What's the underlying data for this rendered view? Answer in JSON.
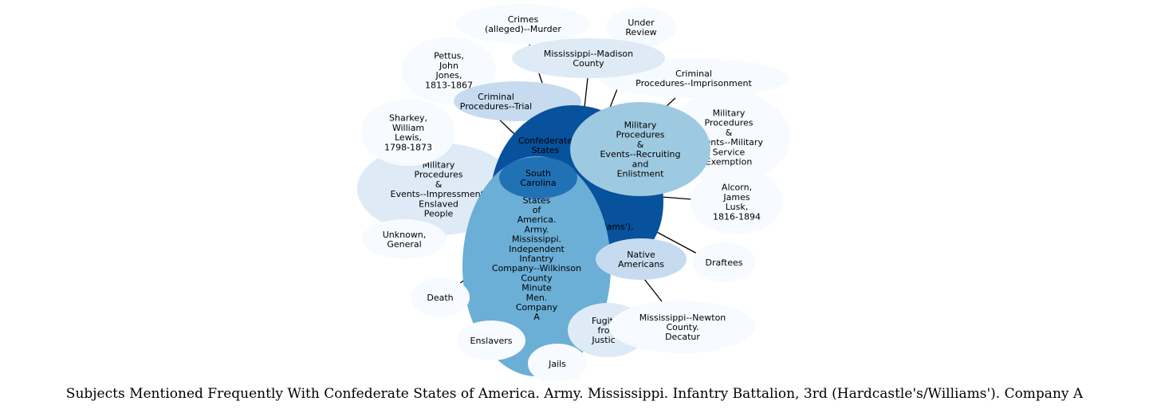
{
  "caption": "Subjects Mentioned Frequently With Confederate States of America. Army. Mississippi. Infantry Battalion, 3rd (Hardcastle's/Williams'). Company A",
  "colors": {
    "darkest": "#08519c",
    "dark": "#2171b5",
    "mid": "#6baed6",
    "light": "#9ecae1",
    "pale": "#c6dbef",
    "paler": "#deebf7",
    "palest": "#f7fbff",
    "edge": "#000000"
  },
  "nodes": [
    {
      "id": "crimes-murder",
      "label": [
        "Crimes",
        "(alleged)--Murder"
      ]
    },
    {
      "id": "under-review",
      "label": [
        "Under",
        "Review"
      ]
    },
    {
      "id": "madison-county",
      "label": [
        "Mississippi--Madison",
        "County"
      ]
    },
    {
      "id": "pettus",
      "label": [
        "Pettus,",
        "John",
        "Jones,",
        "1813-1867"
      ]
    },
    {
      "id": "criminal-imprisonment",
      "label": [
        "Criminal",
        "Procedures--Imprisonment"
      ]
    },
    {
      "id": "criminal-trial",
      "label": [
        "Criminal",
        "Procedures--Trial"
      ]
    },
    {
      "id": "confederate-states",
      "label": [
        "Confederate",
        "States"
      ],
      "label_tail": "'s/Williams')."
    },
    {
      "id": "military-exemption",
      "label": [
        "Military",
        "Procedures",
        "&",
        "Events--Military",
        "Service",
        "Exemption"
      ]
    },
    {
      "id": "military-recruiting",
      "label": [
        "Military",
        "Procedures",
        "&",
        "Events--Recruiting",
        "and",
        "Enlistment"
      ]
    },
    {
      "id": "sharkey",
      "label": [
        "Sharkey,",
        "William",
        "Lewis,",
        "1798-1873"
      ]
    },
    {
      "id": "military-impressment",
      "label": [
        "Military",
        "Procedures",
        "&",
        "Events--Impressment.",
        "Enslaved",
        "People"
      ]
    },
    {
      "id": "south-carolina",
      "label": [
        "South",
        "Carolina"
      ]
    },
    {
      "id": "alcorn",
      "label": [
        "Alcorn,",
        "James",
        "Lusk,",
        "1816-1894"
      ]
    },
    {
      "id": "wilkinson-company",
      "label": [
        "States",
        "of",
        "America.",
        "Army.",
        "Mississippi.",
        "Independent",
        "Infantry",
        "Company--Wilkinson",
        "County",
        "Minute",
        "Men.",
        "Company",
        "A"
      ]
    },
    {
      "id": "unknown-general",
      "label": [
        "Unknown,",
        "General"
      ]
    },
    {
      "id": "native-americans",
      "label": [
        "Native",
        "Americans"
      ]
    },
    {
      "id": "draftees",
      "label": [
        "Draftees"
      ]
    },
    {
      "id": "death",
      "label": [
        "Death"
      ]
    },
    {
      "id": "fugitives",
      "label": [
        "Fugiti",
        "fro",
        "Justic"
      ]
    },
    {
      "id": "newton-county",
      "label": [
        "Mississippi--Newton",
        "County.",
        "Decatur"
      ]
    },
    {
      "id": "enslavers",
      "label": [
        "Enslavers"
      ]
    },
    {
      "id": "jails",
      "label": [
        "Jails"
      ]
    }
  ]
}
